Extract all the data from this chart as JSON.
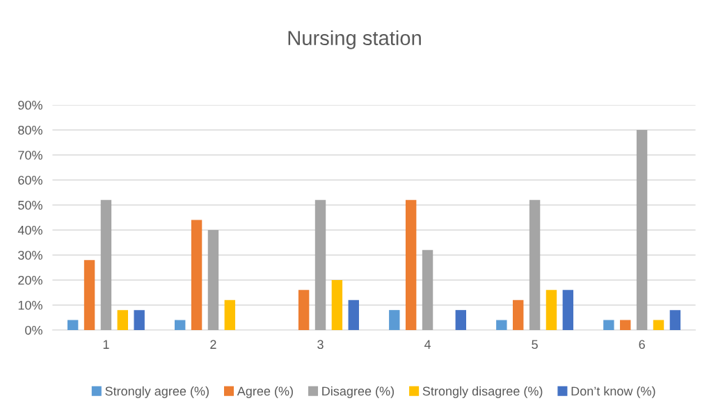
{
  "chart_data": {
    "type": "bar",
    "title": "Nursing station",
    "categories": [
      "1",
      "2",
      "3",
      "4",
      "5",
      "6"
    ],
    "series": [
      {
        "name": "Strongly agree (%)",
        "color": "#5b9bd5",
        "values": [
          4,
          4,
          0,
          8,
          4,
          4
        ]
      },
      {
        "name": "Agree (%)",
        "color": "#ed7d31",
        "values": [
          28,
          44,
          16,
          52,
          12,
          4
        ]
      },
      {
        "name": "Disagree (%)",
        "color": "#a5a5a5",
        "values": [
          52,
          40,
          52,
          32,
          52,
          80
        ]
      },
      {
        "name": "Strongly disagree (%)",
        "color": "#ffc000",
        "values": [
          8,
          12,
          20,
          0,
          16,
          4
        ]
      },
      {
        "name": "Don’t know (%)",
        "color": "#4472c4",
        "values": [
          8,
          0,
          12,
          8,
          16,
          8
        ]
      }
    ],
    "ylim": [
      0,
      90
    ],
    "yticks": [
      {
        "value": 0,
        "label": "0%"
      },
      {
        "value": 10,
        "label": "10%"
      },
      {
        "value": 20,
        "label": "20%"
      },
      {
        "value": 30,
        "label": "30%"
      },
      {
        "value": 40,
        "label": "40%"
      },
      {
        "value": 50,
        "label": "50%"
      },
      {
        "value": 60,
        "label": "60%"
      },
      {
        "value": 70,
        "label": "70%"
      },
      {
        "value": 80,
        "label": "80%"
      },
      {
        "value": 90,
        "label": "90%"
      }
    ],
    "grid": "y",
    "legend": "bottom"
  }
}
